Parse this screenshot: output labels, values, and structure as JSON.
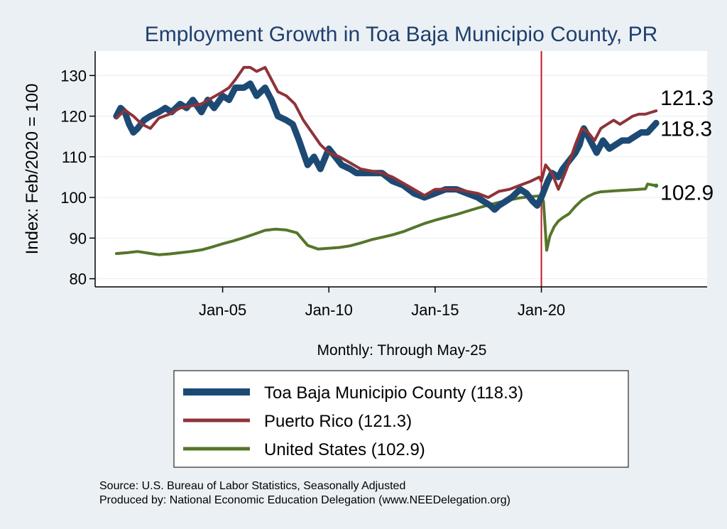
{
  "chart_data": {
    "type": "line",
    "title": "Employment Growth in Toa Baja Municipio  County, PR",
    "xlabel": "Monthly: Through May-25",
    "ylabel": "Index: Feb/2020 = 100",
    "ylim": [
      78,
      136
    ],
    "xlim": [
      1999.0,
      2027.8
    ],
    "yticks": [
      80,
      90,
      100,
      110,
      120,
      130
    ],
    "xticks": [
      {
        "value": 2005.0,
        "label": "Jan-05"
      },
      {
        "value": 2010.0,
        "label": "Jan-10"
      },
      {
        "value": 2015.0,
        "label": "Jan-15"
      },
      {
        "value": 2020.0,
        "label": "Jan-20"
      }
    ],
    "reference_line": {
      "x": 2020.0,
      "color": "#c0182b"
    },
    "series": [
      {
        "name": "Toa Baja Municipio  County",
        "legend_label": "Toa Baja Municipio  County (118.3)",
        "color": "#1d4a74",
        "width": 9,
        "end_value": "118.3",
        "x": [
          2000.0,
          2000.2,
          2000.4,
          2000.6,
          2000.8,
          2001.0,
          2001.3,
          2001.6,
          2002.0,
          2002.3,
          2002.6,
          2003.0,
          2003.3,
          2003.6,
          2004.0,
          2004.3,
          2004.6,
          2005.0,
          2005.3,
          2005.6,
          2006.0,
          2006.3,
          2006.6,
          2007.0,
          2007.3,
          2007.6,
          2008.0,
          2008.3,
          2008.6,
          2009.0,
          2009.3,
          2009.6,
          2010.0,
          2010.3,
          2010.6,
          2011.0,
          2011.3,
          2011.6,
          2012.0,
          2012.5,
          2013.0,
          2013.5,
          2014.0,
          2014.5,
          2015.0,
          2015.5,
          2016.0,
          2016.5,
          2017.0,
          2017.3,
          2017.6,
          2017.8,
          2018.0,
          2018.3,
          2018.6,
          2019.0,
          2019.3,
          2019.6,
          2019.8,
          2020.0,
          2020.3,
          2020.5,
          2020.8,
          2021.0,
          2021.3,
          2021.6,
          2021.8,
          2022.0,
          2022.3,
          2022.6,
          2022.9,
          2023.2,
          2023.5,
          2023.8,
          2024.1,
          2024.4,
          2024.7,
          2025.0,
          2025.4
        ],
        "values": [
          120,
          122,
          121,
          118,
          116,
          117,
          119,
          120,
          121,
          122,
          121,
          123,
          122,
          124,
          121,
          124,
          122,
          125,
          124,
          127,
          127,
          128,
          125,
          127,
          124,
          120,
          119,
          118,
          114,
          108,
          110,
          107,
          112,
          110,
          108,
          107,
          106,
          106,
          106,
          106,
          104,
          103,
          101,
          100,
          101,
          102,
          102,
          101,
          100,
          99,
          98,
          97,
          98,
          99,
          100,
          102,
          101,
          99,
          98,
          100,
          104,
          106,
          105,
          107,
          109,
          111,
          113,
          117,
          114,
          111,
          114,
          112,
          113,
          114,
          114,
          115,
          116,
          116,
          118.3
        ]
      },
      {
        "name": "Puerto Rico",
        "legend_label": "Puerto Rico (121.3)",
        "color": "#8f3338",
        "width": 4,
        "end_value": "121.3",
        "x": [
          2000.0,
          2000.4,
          2000.8,
          2001.2,
          2001.6,
          2002.0,
          2002.5,
          2003.0,
          2003.5,
          2004.0,
          2004.5,
          2005.0,
          2005.3,
          2005.6,
          2006.0,
          2006.3,
          2006.6,
          2007.0,
          2007.3,
          2007.6,
          2008.0,
          2008.4,
          2008.8,
          2009.2,
          2009.6,
          2010.0,
          2010.5,
          2011.0,
          2011.5,
          2012.0,
          2012.5,
          2013.0,
          2013.5,
          2014.0,
          2014.5,
          2015.0,
          2015.5,
          2016.0,
          2016.5,
          2017.0,
          2017.5,
          2018.0,
          2018.5,
          2019.0,
          2019.5,
          2019.9,
          2020.0,
          2020.2,
          2020.5,
          2020.8,
          2021.0,
          2021.3,
          2021.6,
          2021.9,
          2022.2,
          2022.5,
          2022.8,
          2023.1,
          2023.4,
          2023.7,
          2024.0,
          2024.3,
          2024.6,
          2024.9,
          2025.2,
          2025.4
        ],
        "values": [
          119.5,
          121.5,
          120,
          118,
          117,
          119.5,
          120.5,
          122,
          122.5,
          123,
          124.5,
          126,
          127,
          129,
          132,
          132,
          131,
          132,
          129,
          126,
          125,
          123,
          119,
          116,
          113,
          111,
          110,
          108.5,
          107,
          106.5,
          106,
          105,
          103.5,
          102,
          100.5,
          102,
          102,
          102,
          101.5,
          101,
          100,
          101.5,
          102,
          103,
          104,
          105,
          104,
          108,
          106,
          102,
          104.5,
          108.5,
          113,
          117,
          116,
          114,
          117,
          118,
          119,
          118,
          119,
          120,
          120.5,
          120.5,
          121,
          121.3
        ]
      },
      {
        "name": "United States",
        "legend_label": "United States (102.9)",
        "color": "#56752a",
        "width": 4,
        "end_value": "102.9",
        "x": [
          2000.0,
          2000.5,
          2001.0,
          2001.5,
          2002.0,
          2002.5,
          2003.0,
          2003.5,
          2004.0,
          2004.5,
          2005.0,
          2005.5,
          2006.0,
          2006.5,
          2007.0,
          2007.5,
          2008.0,
          2008.5,
          2009.0,
          2009.5,
          2010.0,
          2010.5,
          2011.0,
          2011.5,
          2012.0,
          2012.5,
          2013.0,
          2013.5,
          2014.0,
          2014.5,
          2015.0,
          2015.5,
          2016.0,
          2016.5,
          2017.0,
          2017.5,
          2018.0,
          2018.5,
          2019.0,
          2019.5,
          2020.0,
          2020.1,
          2020.25,
          2020.4,
          2020.6,
          2020.8,
          2021.0,
          2021.3,
          2021.6,
          2021.9,
          2022.2,
          2022.5,
          2022.8,
          2023.1,
          2023.4,
          2023.7,
          2024.0,
          2024.3,
          2024.6,
          2024.9,
          2025.0,
          2025.4
        ],
        "values": [
          86.2,
          86.4,
          86.7,
          86.3,
          85.9,
          86.1,
          86.4,
          86.7,
          87.1,
          87.8,
          88.6,
          89.3,
          90.1,
          91.0,
          91.9,
          92.2,
          92.0,
          91.3,
          88.2,
          87.3,
          87.5,
          87.7,
          88.1,
          88.8,
          89.6,
          90.2,
          90.8,
          91.6,
          92.6,
          93.6,
          94.4,
          95.1,
          95.8,
          96.6,
          97.4,
          98.1,
          98.8,
          99.4,
          99.9,
          100.2,
          100.4,
          99.0,
          87.0,
          90.5,
          92.8,
          94.2,
          95.0,
          96.0,
          97.8,
          99.3,
          100.3,
          101.0,
          101.4,
          101.5,
          101.6,
          101.7,
          101.8,
          101.9,
          102.0,
          102.1,
          103.3,
          102.9
        ]
      }
    ]
  },
  "source": {
    "line1": "Source: U.S. Bureau of Labor Statistics, Seasonally Adjusted",
    "line2": "Produced by: National Economic Education Delegation (www.NEEDelegation.org)"
  }
}
